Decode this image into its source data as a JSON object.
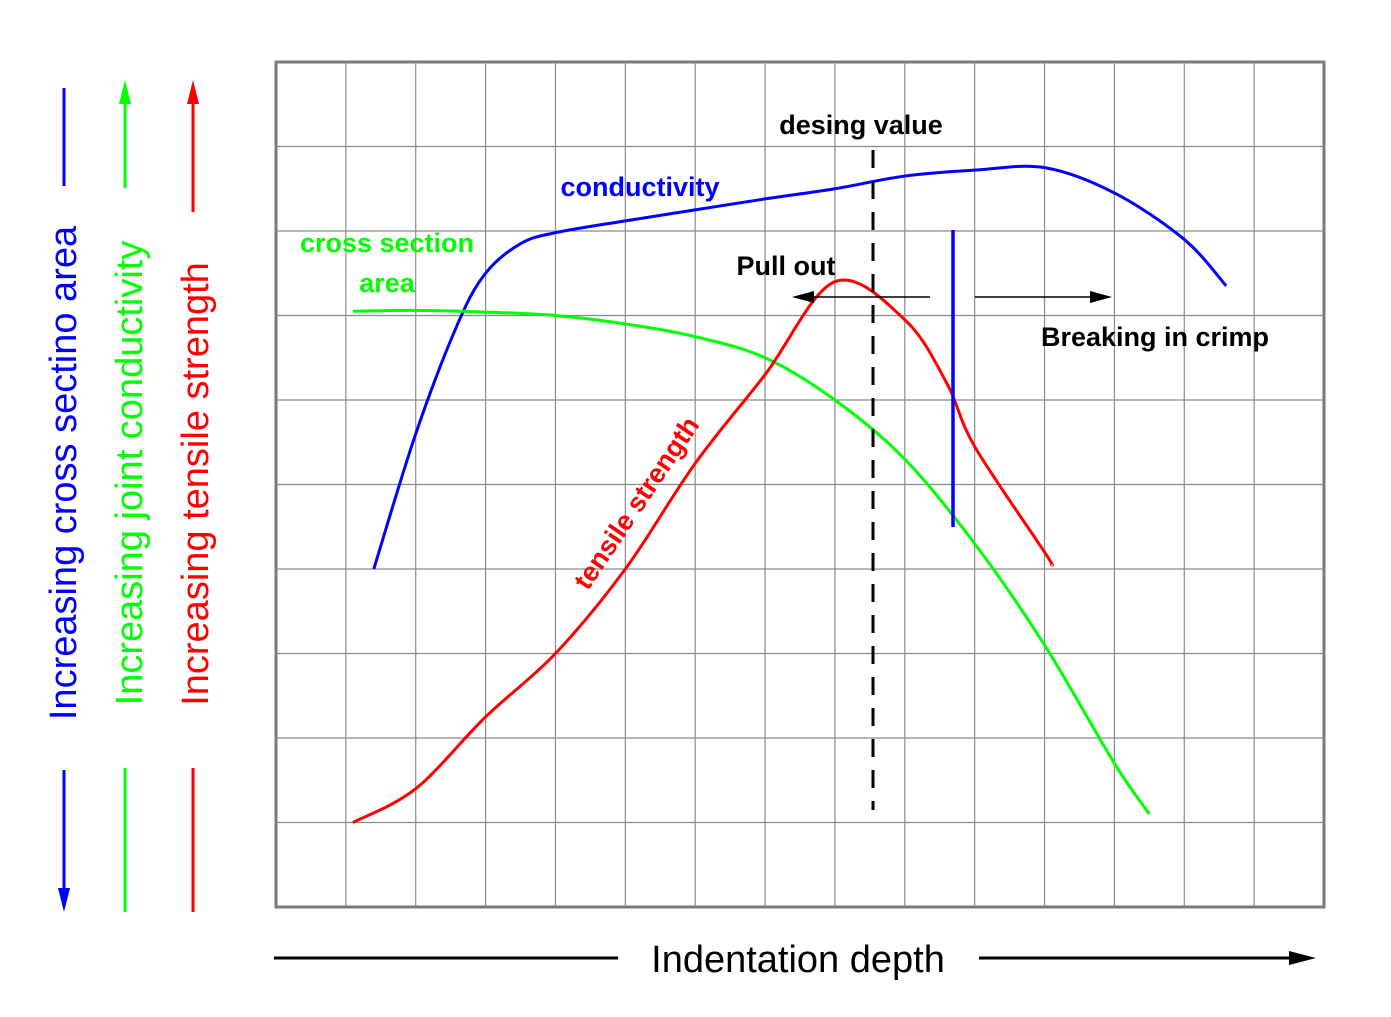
{
  "chart_data": {
    "type": "line",
    "title": "",
    "xlabel": "Indentation depth",
    "ylabels": [
      {
        "text": "Increasing cross sectino area",
        "color": "#0000ff",
        "direction": "down"
      },
      {
        "text": "Increasing joint conductivity",
        "color": "#00ff00",
        "direction": "up"
      },
      {
        "text": "Increasing tensile strength",
        "color": "#ff0000",
        "direction": "up"
      }
    ],
    "grid": true,
    "xlim": [
      0,
      15
    ],
    "ylim": [
      0,
      10
    ],
    "series": [
      {
        "name": "conductivity",
        "color": "#0000ff",
        "x": [
          1.4,
          2.0,
          2.6,
          3.0,
          3.5,
          4.0,
          5.0,
          6.0,
          7.0,
          8.0,
          9.0,
          10.0,
          11.0,
          12.0,
          13.0,
          13.6
        ],
        "y": [
          4.0,
          5.6,
          6.9,
          7.5,
          7.85,
          7.98,
          8.12,
          8.25,
          8.38,
          8.5,
          8.65,
          8.72,
          8.75,
          8.45,
          7.9,
          7.35
        ]
      },
      {
        "name": "cross section area",
        "color": "#00ff00",
        "x": [
          1.1,
          2.0,
          3.0,
          4.0,
          5.0,
          6.0,
          7.0,
          8.0,
          9.0,
          10.0,
          11.0,
          12.0,
          12.5
        ],
        "y": [
          7.05,
          7.06,
          7.04,
          7.0,
          6.9,
          6.75,
          6.5,
          6.0,
          5.3,
          4.3,
          3.1,
          1.7,
          1.1
        ]
      },
      {
        "name": "tensile strength",
        "color": "#ff0000",
        "x": [
          1.1,
          2.0,
          3.0,
          4.0,
          5.0,
          6.0,
          7.0,
          8.0,
          9.0,
          9.6,
          10.0,
          11.0,
          11.1
        ],
        "y": [
          1.0,
          1.4,
          2.25,
          3.0,
          4.0,
          5.25,
          6.3,
          7.4,
          6.95,
          6.2,
          5.45,
          4.2,
          4.05
        ],
        "_note_unused": ""
      }
    ],
    "annotations": {
      "design_value": {
        "text": "desing value",
        "x": 8.55
      },
      "pull_out": "Pull out",
      "breaking": "Breaking in crimp",
      "conductivity_label": "conductivity",
      "cross_section_label_1": "cross section",
      "cross_section_label_2": "area",
      "tensile_label": "tensile strength"
    }
  }
}
